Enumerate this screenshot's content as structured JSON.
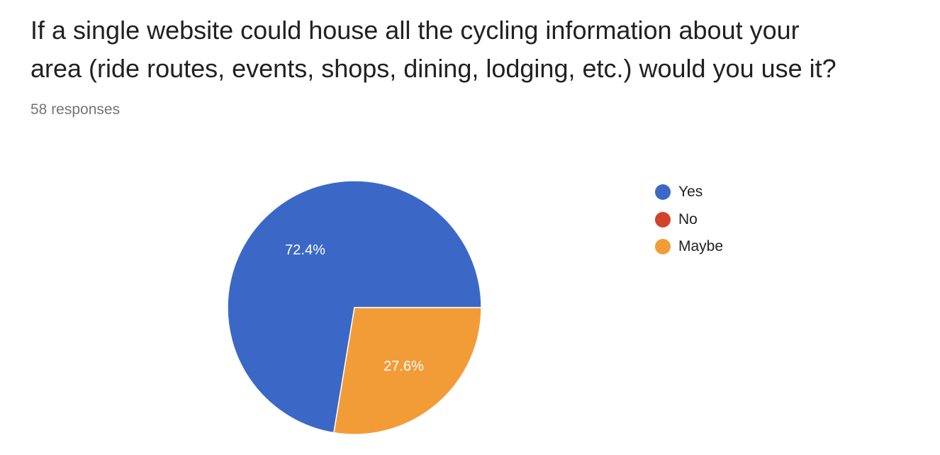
{
  "question": {
    "line1": "If a single website could house all the cycling information about your",
    "line2": "area (ride routes, events, shops, dining, lodging, etc.) would you use it?"
  },
  "responses": "58 responses",
  "chart_data": {
    "type": "pie",
    "slices": [
      {
        "name": "Yes",
        "value": 72.4,
        "label": "72.4%",
        "color": "#3b68c6"
      },
      {
        "name": "No",
        "value": 0,
        "label": "",
        "color": "#d1432a"
      },
      {
        "name": "Maybe",
        "value": 27.6,
        "label": "27.6%",
        "color": "#f29c38"
      }
    ],
    "legend": {
      "position": "right",
      "entries": [
        "Yes",
        "No",
        "Maybe"
      ]
    }
  }
}
